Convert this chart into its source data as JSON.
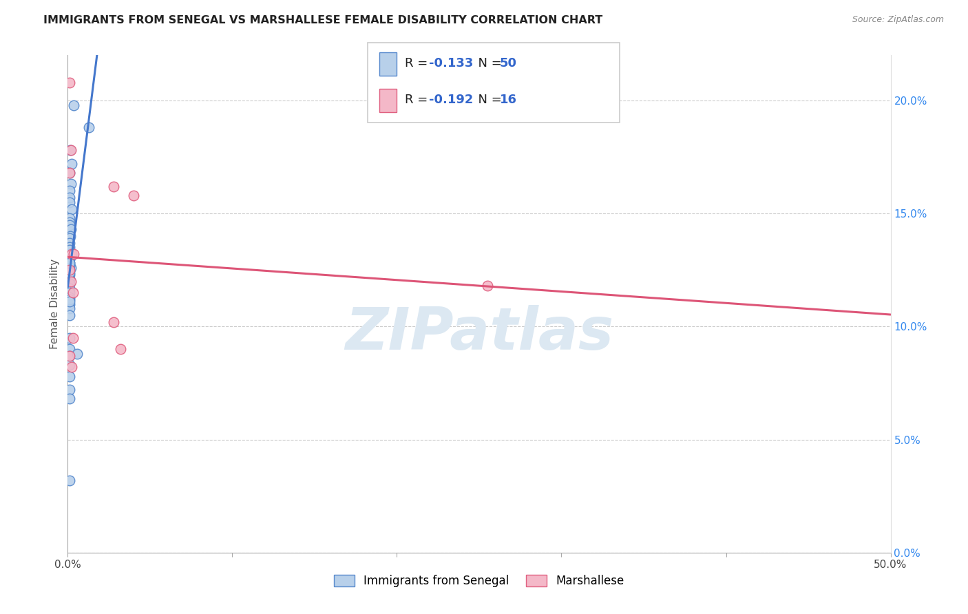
{
  "title": "IMMIGRANTS FROM SENEGAL VS MARSHALLESE FEMALE DISABILITY CORRELATION CHART",
  "source": "Source: ZipAtlas.com",
  "ylabel": "Female Disability",
  "right_yticks": [
    "0.0%",
    "5.0%",
    "10.0%",
    "15.0%",
    "20.0%"
  ],
  "right_yvalues": [
    0.0,
    5.0,
    10.0,
    15.0,
    20.0
  ],
  "legend_label1": "Immigrants from Senegal",
  "legend_label2": "Marshallese",
  "R1": -0.133,
  "N1": 50,
  "R2": -0.192,
  "N2": 16,
  "blue_fill": "#b8d0ea",
  "blue_edge": "#5588cc",
  "pink_fill": "#f4b8c8",
  "pink_edge": "#e06080",
  "blue_line": "#4477cc",
  "pink_line": "#dd5577",
  "blue_scatter_x": [
    0.35,
    1.3,
    0.15,
    0.25,
    0.12,
    0.18,
    0.12,
    0.1,
    0.1,
    0.22,
    0.1,
    0.1,
    0.1,
    0.2,
    0.15,
    0.1,
    0.1,
    0.1,
    0.15,
    0.1,
    0.1,
    0.2,
    0.1,
    0.1,
    0.1,
    0.1,
    0.1,
    0.1,
    0.1,
    0.15,
    0.1,
    0.1,
    0.1,
    0.1,
    0.1,
    0.1,
    0.1,
    0.1,
    0.1,
    0.1,
    0.55,
    0.1,
    0.1,
    0.1,
    0.1,
    0.1,
    0.1,
    0.1,
    0.1,
    0.1
  ],
  "blue_scatter_y": [
    19.8,
    18.8,
    17.8,
    17.2,
    16.8,
    16.3,
    16.0,
    15.7,
    15.5,
    15.2,
    14.8,
    14.6,
    14.5,
    14.3,
    14.0,
    13.9,
    13.7,
    13.5,
    13.2,
    13.0,
    12.8,
    12.6,
    12.5,
    12.3,
    12.1,
    11.9,
    11.7,
    11.5,
    11.3,
    13.1,
    11.0,
    10.8,
    10.5,
    9.5,
    9.0,
    8.7,
    8.3,
    7.8,
    7.2,
    6.8,
    8.8,
    12.7,
    12.4,
    13.0,
    13.2,
    11.2,
    11.1,
    12.8,
    3.2,
    13.4
  ],
  "pink_scatter_x": [
    0.12,
    0.18,
    0.12,
    2.8,
    4.0,
    0.22,
    0.12,
    0.18,
    0.32,
    0.32,
    3.2,
    2.8,
    25.5,
    0.22,
    0.12,
    0.35
  ],
  "pink_scatter_y": [
    20.8,
    17.8,
    16.8,
    16.2,
    15.8,
    13.2,
    12.5,
    12.0,
    11.5,
    9.5,
    9.0,
    10.2,
    11.8,
    8.2,
    8.7,
    13.2
  ],
  "xlim": [
    0,
    50
  ],
  "ylim": [
    0,
    22
  ],
  "watermark": "ZIPatlas"
}
